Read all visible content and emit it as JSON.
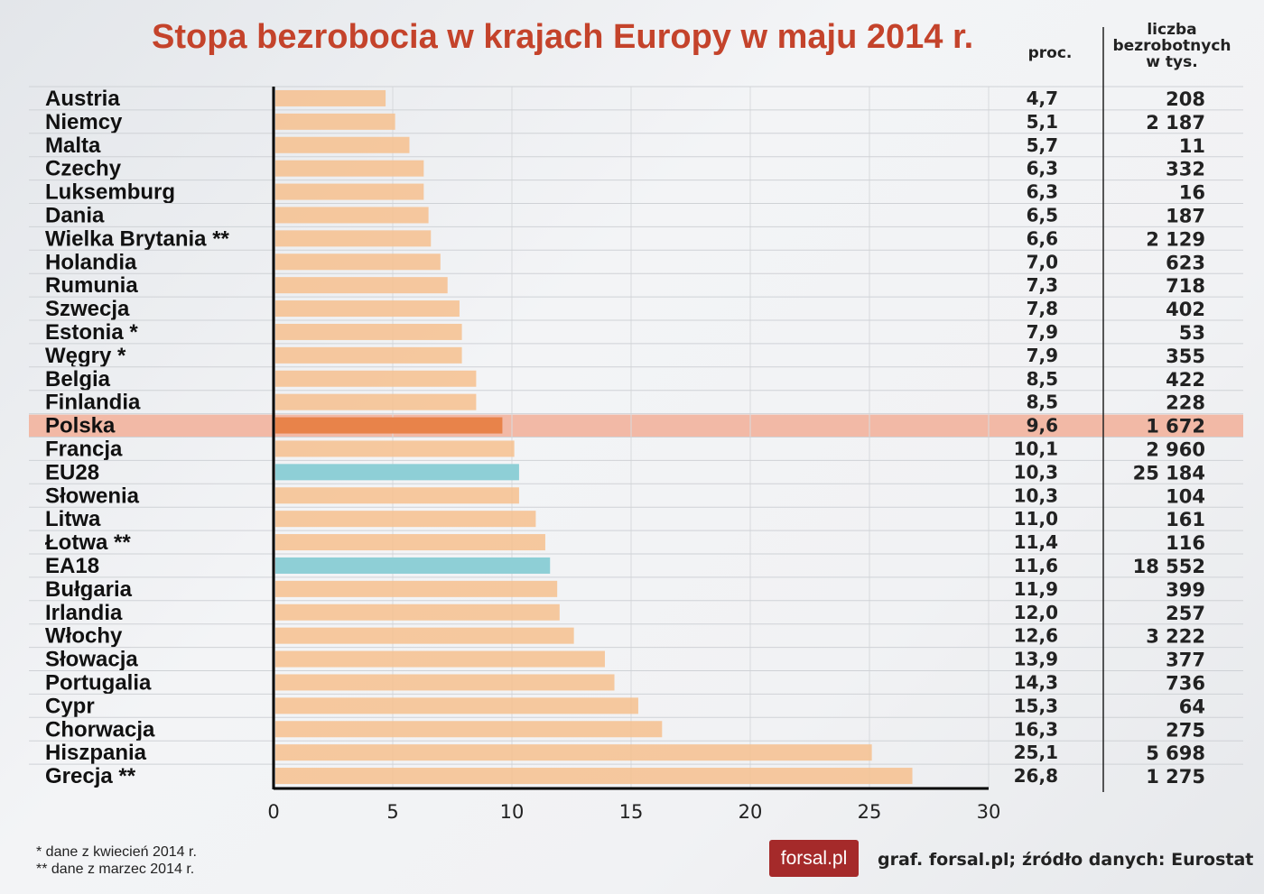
{
  "colors": {
    "bar": "#f6c08e",
    "highlight_bar": "#e8834a",
    "highlight_band": "#f2b9a6",
    "aggregate_bar": "#8ecfd6",
    "title": "#c4432b"
  },
  "chart_data": {
    "type": "bar",
    "orientation": "horizontal",
    "title": "Stopa bezrobocia w krajach Europy w maju 2014 r.",
    "column_headers": {
      "rate": "proc.",
      "count": "liczba bezrobotnych w tys."
    },
    "xlim": [
      0,
      30
    ],
    "xticks": [
      "0",
      "5",
      "10",
      "15",
      "20",
      "25",
      "30"
    ],
    "grid": true,
    "highlighted": "Polska",
    "aggregates": [
      "EU28",
      "EA18"
    ],
    "categories": [
      "Austria",
      "Niemcy",
      "Malta",
      "Czechy",
      "Luksemburg",
      "Dania",
      "Wielka Brytania **",
      "Holandia",
      "Rumunia",
      "Szwecja",
      "Estonia *",
      "Węgry *",
      "Belgia",
      "Finlandia",
      "Polska",
      "Francja",
      "EU28",
      "Słowenia",
      "Litwa",
      "Łotwa **",
      "EA18",
      "Bułgaria",
      "Irlandia",
      "Włochy",
      "Słowacja",
      "Portugalia",
      "Cypr",
      "Chorwacja",
      "Hiszpania",
      "Grecja **"
    ],
    "values": [
      4.7,
      5.1,
      5.7,
      6.3,
      6.3,
      6.5,
      6.6,
      7.0,
      7.3,
      7.8,
      7.9,
      7.9,
      8.5,
      8.5,
      9.6,
      10.1,
      10.3,
      10.3,
      11.0,
      11.4,
      11.6,
      11.9,
      12.0,
      12.6,
      13.9,
      14.3,
      15.3,
      16.3,
      25.1,
      26.8
    ],
    "value_labels": [
      "4,7",
      "5,1",
      "5,7",
      "6,3",
      "6,3",
      "6,5",
      "6,6",
      "7,0",
      "7,3",
      "7,8",
      "7,9",
      "7,9",
      "8,5",
      "8,5",
      "9,6",
      "10,1",
      "10,3",
      "10,3",
      "11,0",
      "11,4",
      "11,6",
      "11,9",
      "12,0",
      "12,6",
      "13,9",
      "14,3",
      "15,3",
      "16,3",
      "25,1",
      "26,8"
    ],
    "unemployed_thousands": [
      "208",
      "2 187",
      "11",
      "332",
      "16",
      "187",
      "2 129",
      "623",
      "718",
      "402",
      "53",
      "355",
      "422",
      "228",
      "1 672",
      "2 960",
      "25 184",
      "104",
      "161",
      "116",
      "18 552",
      "399",
      "257",
      "3 222",
      "377",
      "736",
      "64",
      "275",
      "5 698",
      "1 275"
    ]
  },
  "footnotes": [
    "* dane z kwiecień 2014 r.",
    "** dane z marzec 2014 r."
  ],
  "logo": "forsal.pl",
  "credit": "graf. forsal.pl;",
  "source": "źródło danych: Eurostat"
}
